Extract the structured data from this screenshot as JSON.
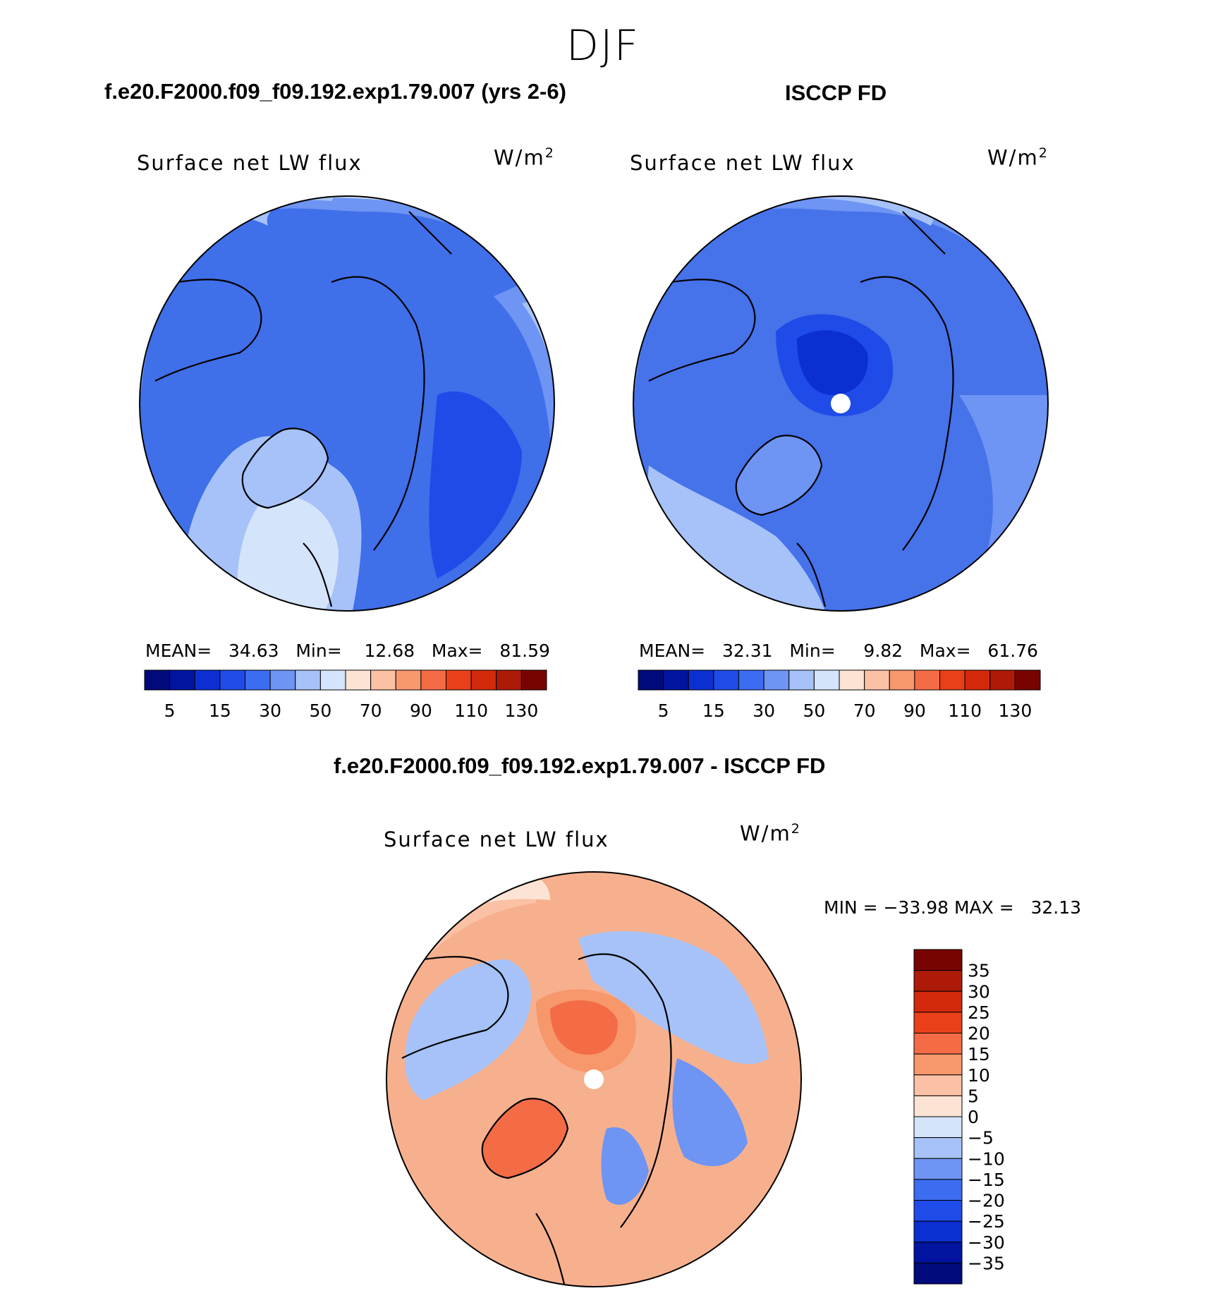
{
  "figure": {
    "title": "DJF",
    "panels": [
      {
        "title": "f.e20.F2000.f09_f09.192.exp1.79.007 (yrs 2-6)",
        "variable": "Surface net LW flux",
        "units": "W/m²",
        "stats_text": "MEAN=   34.63   Min=    12.68   Max=   81.59"
      },
      {
        "title": "ISCCP FD",
        "variable": "Surface net LW flux",
        "units": "W/m²",
        "stats_text": "MEAN=   32.31   Min=     9.82   Max=   61.76"
      },
      {
        "title": "f.e20.F2000.f09_f09.192.exp1.79.007 - ISCCP FD",
        "variable": "Surface net LW flux",
        "units": "W/m²",
        "stats_text": "MIN = −33.98 MAX =   32.13"
      }
    ],
    "abs_colorbar": {
      "tick_labels": [
        "5",
        "15",
        "30",
        "50",
        "70",
        "90",
        "110",
        "130"
      ],
      "colors": [
        "#000a7a",
        "#0014a0",
        "#0b2fd0",
        "#1f4be8",
        "#3c6cf0",
        "#6e94f4",
        "#a6c2f8",
        "#d4e4fb",
        "#fde3d4",
        "#fbc1a4",
        "#f7976c",
        "#f36c45",
        "#ea4019",
        "#d42a0c",
        "#ad1a08",
        "#780303"
      ]
    },
    "diff_colorbar": {
      "tick_labels": [
        "35",
        "30",
        "25",
        "20",
        "15",
        "10",
        "5",
        "0",
        "−5",
        "−10",
        "−15",
        "−20",
        "−25",
        "−30",
        "−35"
      ],
      "colors": [
        "#780303",
        "#ad1a08",
        "#d42a0c",
        "#ea4019",
        "#f36c45",
        "#f7976c",
        "#fbc1a4",
        "#fde3d4",
        "#d4e4fb",
        "#a6c2f8",
        "#6e94f4",
        "#3c6cf0",
        "#1f4be8",
        "#0b2fd0",
        "#0014a0",
        "#000a7a"
      ]
    },
    "map_colors": {
      "model_base": "#3f6fe9",
      "obs_base": "#4672ea",
      "diff_base": "#f6aa86"
    }
  }
}
